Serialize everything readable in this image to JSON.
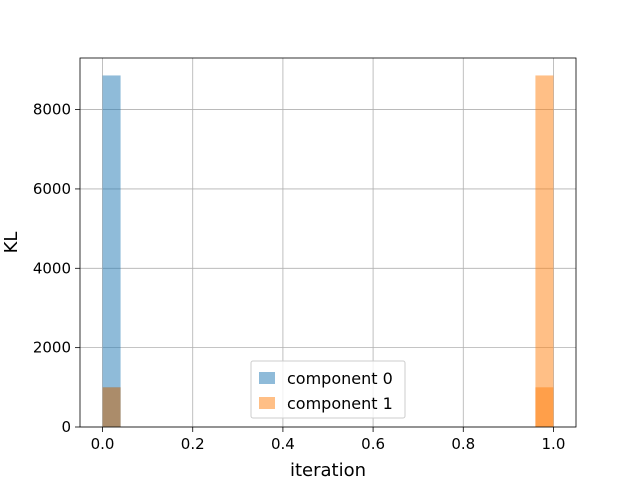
{
  "chart_data": {
    "type": "bar",
    "title": "",
    "xlabel": "iteration",
    "ylabel": "KL",
    "xlim": [
      -0.05,
      1.05
    ],
    "ylim": [
      0,
      9300
    ],
    "xticks": [
      0.0,
      0.2,
      0.4,
      0.6,
      0.8,
      1.0
    ],
    "xtick_labels": [
      "0.0",
      "0.2",
      "0.4",
      "0.6",
      "0.8",
      "1.0"
    ],
    "yticks": [
      0,
      2000,
      4000,
      6000,
      8000
    ],
    "ytick_labels": [
      "0",
      "2000",
      "4000",
      "6000",
      "8000"
    ],
    "grid": true,
    "legend_position": "lower-center",
    "series": [
      {
        "name": "component 0",
        "color": "#1f77b4",
        "alpha": 0.5,
        "bars": [
          {
            "x0": 0.0,
            "x1": 0.04,
            "value": 8860
          },
          {
            "x0": 0.0,
            "x1": 0.04,
            "value": 1000
          }
        ]
      },
      {
        "name": "component 1",
        "color": "#ff7f0e",
        "alpha": 0.5,
        "bars": [
          {
            "x0": 0.96,
            "x1": 1.0,
            "value": 8860
          },
          {
            "x0": 0.0,
            "x1": 0.04,
            "value": 1000
          },
          {
            "x0": 0.96,
            "x1": 1.0,
            "value": 1000
          }
        ]
      }
    ]
  }
}
